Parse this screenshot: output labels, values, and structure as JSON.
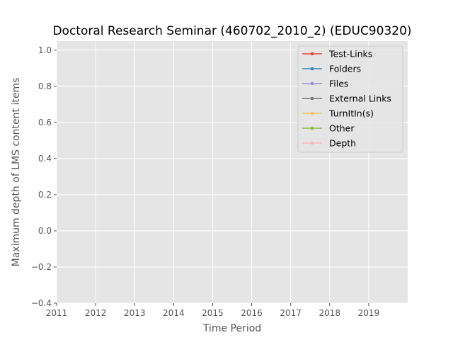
{
  "chart_data": {
    "type": "line",
    "title": "Doctoral Research Seminar (460702_2010_2) (EDUC90320)",
    "xlabel": "Time Period",
    "ylabel": "Maximum depth of LMS content items",
    "xlim": [
      2011,
      2020
    ],
    "ylim": [
      -0.4,
      1.05
    ],
    "xticks": [
      "2011",
      "2012",
      "2013",
      "2014",
      "2015",
      "2016",
      "2017",
      "2018",
      "2019"
    ],
    "yticks": [
      "−0.4",
      "−0.2",
      "0.0",
      "0.2",
      "0.4",
      "0.6",
      "0.8",
      "1.0"
    ],
    "ytick_values": [
      -0.4,
      -0.2,
      0.0,
      0.2,
      0.4,
      0.6,
      0.8,
      1.0
    ],
    "grid": true,
    "legend_position": "top-right",
    "series": [
      {
        "name": "Test-Links",
        "color": "#E24A33",
        "values": []
      },
      {
        "name": "Folders",
        "color": "#348ABD",
        "values": []
      },
      {
        "name": "Files",
        "color": "#988ED5",
        "values": []
      },
      {
        "name": "External Links",
        "color": "#777777",
        "values": []
      },
      {
        "name": "TurnItIn(s)",
        "color": "#FBC15E",
        "values": []
      },
      {
        "name": "Other",
        "color": "#8EBA42",
        "values": []
      },
      {
        "name": "Depth",
        "color": "#FFB5B8",
        "values": []
      }
    ]
  }
}
